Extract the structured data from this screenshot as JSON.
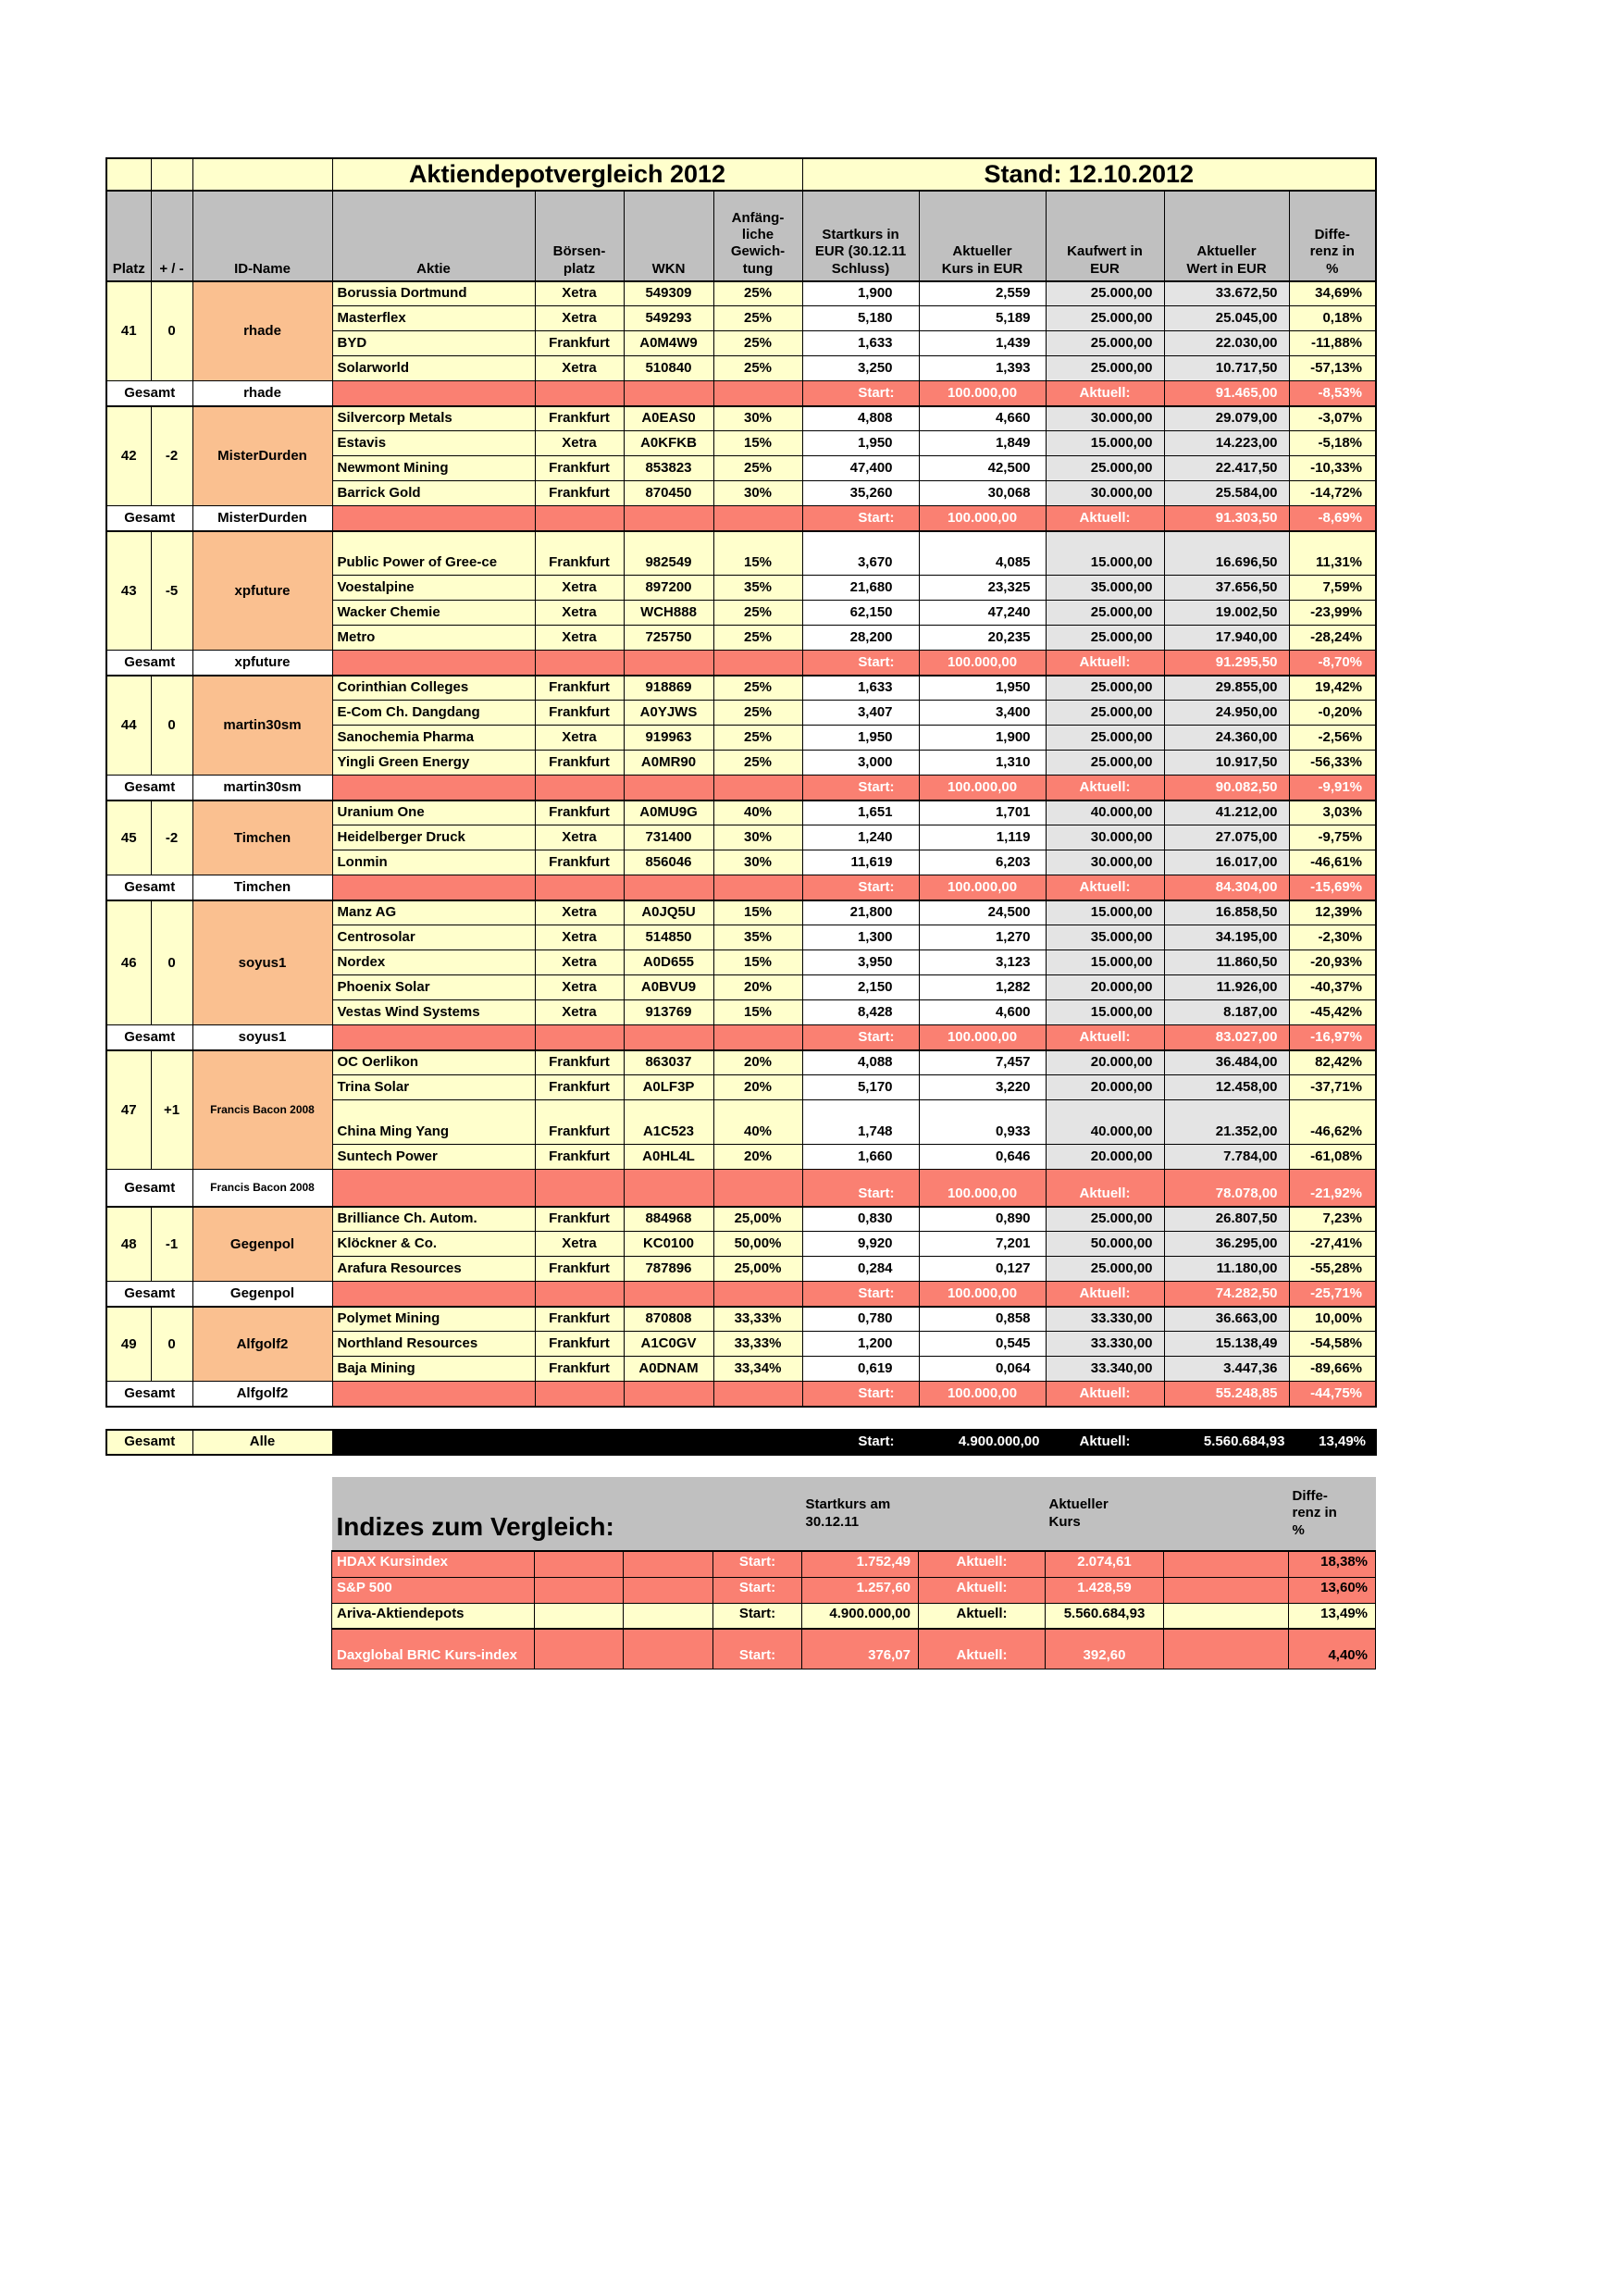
{
  "sheet": {
    "title": "Aktiendepotvergleich 2012",
    "stand": "Stand: 12.10.2012"
  },
  "columns": {
    "platz": "Platz",
    "change": "+ / -",
    "id_name": "ID-Name",
    "aktie": "Aktie",
    "boersenplatz": "Börsen-platz",
    "wkn": "WKN",
    "gewichtung": "Anfäng-liche Gewich-tung",
    "startkurs": "Startkurs in EUR (30.12.11 Schluss)",
    "akt_kurs": "Aktueller Kurs in EUR",
    "kaufwert": "Kaufwert in EUR",
    "akt_wert": "Aktueller Wert in EUR",
    "differenz": "Diffe-renz in %"
  },
  "labels": {
    "gesamt": "Gesamt",
    "start": "Start:",
    "aktuell": "Aktuell:"
  },
  "blocks": [
    {
      "platz": "41",
      "change": "0",
      "id": "rhade",
      "stocks": [
        {
          "name": "Borussia Dortmund",
          "exchange": "Xetra",
          "wkn": "549309",
          "weight": "25%",
          "start": "1,900",
          "kurs": "2,559",
          "kaufwert": "25.000,00",
          "wert": "33.672,50",
          "diff": "34,69%"
        },
        {
          "name": "Masterflex",
          "exchange": "Xetra",
          "wkn": "549293",
          "weight": "25%",
          "start": "5,180",
          "kurs": "5,189",
          "kaufwert": "25.000,00",
          "wert": "25.045,00",
          "diff": "0,18%"
        },
        {
          "name": "BYD",
          "exchange": "Frankfurt",
          "wkn": "A0M4W9",
          "weight": "25%",
          "start": "1,633",
          "kurs": "1,439",
          "kaufwert": "25.000,00",
          "wert": "22.030,00",
          "diff": "-11,88%"
        },
        {
          "name": "Solarworld",
          "exchange": "Xetra",
          "wkn": "510840",
          "weight": "25%",
          "start": "3,250",
          "kurs": "1,393",
          "kaufwert": "25.000,00",
          "wert": "10.717,50",
          "diff": "-57,13%"
        }
      ],
      "gesamt": {
        "start": "100.000,00",
        "wert": "91.465,00",
        "diff": "-8,53%"
      }
    },
    {
      "platz": "42",
      "change": "-2",
      "id": "MisterDurden",
      "stocks": [
        {
          "name": "Silvercorp Metals",
          "exchange": "Frankfurt",
          "wkn": "A0EAS0",
          "weight": "30%",
          "start": "4,808",
          "kurs": "4,660",
          "kaufwert": "30.000,00",
          "wert": "29.079,00",
          "diff": "-3,07%"
        },
        {
          "name": "Estavis",
          "exchange": "Xetra",
          "wkn": "A0KFKB",
          "weight": "15%",
          "start": "1,950",
          "kurs": "1,849",
          "kaufwert": "15.000,00",
          "wert": "14.223,00",
          "diff": "-5,18%"
        },
        {
          "name": "Newmont Mining",
          "exchange": "Frankfurt",
          "wkn": "853823",
          "weight": "25%",
          "start": "47,400",
          "kurs": "42,500",
          "kaufwert": "25.000,00",
          "wert": "22.417,50",
          "diff": "-10,33%"
        },
        {
          "name": "Barrick Gold",
          "exchange": "Frankfurt",
          "wkn": "870450",
          "weight": "30%",
          "start": "35,260",
          "kurs": "30,068",
          "kaufwert": "30.000,00",
          "wert": "25.584,00",
          "diff": "-14,72%"
        }
      ],
      "gesamt": {
        "start": "100.000,00",
        "wert": "91.303,50",
        "diff": "-8,69%"
      }
    },
    {
      "platz": "43",
      "change": "-5",
      "id": "xpfuture",
      "stocks": [
        {
          "name": "Public Power of Gree-ce",
          "exchange": "Frankfurt",
          "wkn": "982549",
          "weight": "15%",
          "start": "3,670",
          "kurs": "4,085",
          "kaufwert": "15.000,00",
          "wert": "16.696,50",
          "diff": "11,31%",
          "tall": true
        },
        {
          "name": "Voestalpine",
          "exchange": "Xetra",
          "wkn": "897200",
          "weight": "35%",
          "start": "21,680",
          "kurs": "23,325",
          "kaufwert": "35.000,00",
          "wert": "37.656,50",
          "diff": "7,59%"
        },
        {
          "name": "Wacker Chemie",
          "exchange": "Xetra",
          "wkn": "WCH888",
          "weight": "25%",
          "start": "62,150",
          "kurs": "47,240",
          "kaufwert": "25.000,00",
          "wert": "19.002,50",
          "diff": "-23,99%"
        },
        {
          "name": "Metro",
          "exchange": "Xetra",
          "wkn": "725750",
          "weight": "25%",
          "start": "28,200",
          "kurs": "20,235",
          "kaufwert": "25.000,00",
          "wert": "17.940,00",
          "diff": "-28,24%"
        }
      ],
      "gesamt": {
        "start": "100.000,00",
        "wert": "91.295,50",
        "diff": "-8,70%"
      }
    },
    {
      "platz": "44",
      "change": "0",
      "id": "martin30sm",
      "stocks": [
        {
          "name": "Corinthian Colleges",
          "exchange": "Frankfurt",
          "wkn": "918869",
          "weight": "25%",
          "start": "1,633",
          "kurs": "1,950",
          "kaufwert": "25.000,00",
          "wert": "29.855,00",
          "diff": "19,42%"
        },
        {
          "name": "E-Com Ch. Dangdang",
          "exchange": "Frankfurt",
          "wkn": "A0YJWS",
          "weight": "25%",
          "start": "3,407",
          "kurs": "3,400",
          "kaufwert": "25.000,00",
          "wert": "24.950,00",
          "diff": "-0,20%"
        },
        {
          "name": "Sanochemia Pharma",
          "exchange": "Xetra",
          "wkn": "919963",
          "weight": "25%",
          "start": "1,950",
          "kurs": "1,900",
          "kaufwert": "25.000,00",
          "wert": "24.360,00",
          "diff": "-2,56%"
        },
        {
          "name": "Yingli Green Energy",
          "exchange": "Frankfurt",
          "wkn": "A0MR90",
          "weight": "25%",
          "start": "3,000",
          "kurs": "1,310",
          "kaufwert": "25.000,00",
          "wert": "10.917,50",
          "diff": "-56,33%"
        }
      ],
      "gesamt": {
        "start": "100.000,00",
        "wert": "90.082,50",
        "diff": "-9,91%"
      }
    },
    {
      "platz": "45",
      "change": "-2",
      "id": "Timchen",
      "stocks": [
        {
          "name": "Uranium One",
          "exchange": "Frankfurt",
          "wkn": "A0MU9G",
          "weight": "40%",
          "start": "1,651",
          "kurs": "1,701",
          "kaufwert": "40.000,00",
          "wert": "41.212,00",
          "diff": "3,03%"
        },
        {
          "name": "Heidelberger Druck",
          "exchange": "Xetra",
          "wkn": "731400",
          "weight": "30%",
          "start": "1,240",
          "kurs": "1,119",
          "kaufwert": "30.000,00",
          "wert": "27.075,00",
          "diff": "-9,75%"
        },
        {
          "name": "Lonmin",
          "exchange": "Frankfurt",
          "wkn": "856046",
          "weight": "30%",
          "start": "11,619",
          "kurs": "6,203",
          "kaufwert": "30.000,00",
          "wert": "16.017,00",
          "diff": "-46,61%"
        }
      ],
      "gesamt": {
        "start": "100.000,00",
        "wert": "84.304,00",
        "diff": "-15,69%"
      }
    },
    {
      "platz": "46",
      "change": "0",
      "id": "soyus1",
      "stocks": [
        {
          "name": "Manz AG",
          "exchange": "Xetra",
          "wkn": "A0JQ5U",
          "weight": "15%",
          "start": "21,800",
          "kurs": "24,500",
          "kaufwert": "15.000,00",
          "wert": "16.858,50",
          "diff": "12,39%"
        },
        {
          "name": "Centrosolar",
          "exchange": "Xetra",
          "wkn": "514850",
          "weight": "35%",
          "start": "1,300",
          "kurs": "1,270",
          "kaufwert": "35.000,00",
          "wert": "34.195,00",
          "diff": "-2,30%"
        },
        {
          "name": "Nordex",
          "exchange": "Xetra",
          "wkn": "A0D655",
          "weight": "15%",
          "start": "3,950",
          "kurs": "3,123",
          "kaufwert": "15.000,00",
          "wert": "11.860,50",
          "diff": "-20,93%"
        },
        {
          "name": "Phoenix Solar",
          "exchange": "Xetra",
          "wkn": "A0BVU9",
          "weight": "20%",
          "start": "2,150",
          "kurs": "1,282",
          "kaufwert": "20.000,00",
          "wert": "11.926,00",
          "diff": "-40,37%"
        },
        {
          "name": "Vestas Wind Systems",
          "exchange": "Xetra",
          "wkn": "913769",
          "weight": "15%",
          "start": "8,428",
          "kurs": "4,600",
          "kaufwert": "15.000,00",
          "wert": "8.187,00",
          "diff": "-45,42%"
        }
      ],
      "gesamt": {
        "start": "100.000,00",
        "wert": "83.027,00",
        "diff": "-16,97%"
      }
    },
    {
      "platz": "47",
      "change": "+1",
      "id": "Francis Bacon 2008",
      "gesamt_tall": true,
      "stocks": [
        {
          "name": "OC Oerlikon",
          "exchange": "Frankfurt",
          "wkn": "863037",
          "weight": "20%",
          "start": "4,088",
          "kurs": "7,457",
          "kaufwert": "20.000,00",
          "wert": "36.484,00",
          "diff": "82,42%"
        },
        {
          "name": "Trina Solar",
          "exchange": "Frankfurt",
          "wkn": "A0LF3P",
          "weight": "20%",
          "start": "5,170",
          "kurs": "3,220",
          "kaufwert": "20.000,00",
          "wert": "12.458,00",
          "diff": "-37,71%"
        },
        {
          "name": "China Ming Yang",
          "exchange": "Frankfurt",
          "wkn": "A1C523",
          "weight": "40%",
          "start": "1,748",
          "kurs": "0,933",
          "kaufwert": "40.000,00",
          "wert": "21.352,00",
          "diff": "-46,62%",
          "tall": true
        },
        {
          "name": "Suntech Power",
          "exchange": "Frankfurt",
          "wkn": "A0HL4L",
          "weight": "20%",
          "start": "1,660",
          "kurs": "0,646",
          "kaufwert": "20.000,00",
          "wert": "7.784,00",
          "diff": "-61,08%"
        }
      ],
      "gesamt": {
        "start": "100.000,00",
        "wert": "78.078,00",
        "diff": "-21,92%"
      }
    },
    {
      "platz": "48",
      "change": "-1",
      "id": "Gegenpol",
      "stocks": [
        {
          "name": "Brilliance Ch. Autom.",
          "exchange": "Frankfurt",
          "wkn": "884968",
          "weight": "25,00%",
          "start": "0,830",
          "kurs": "0,890",
          "kaufwert": "25.000,00",
          "wert": "26.807,50",
          "diff": "7,23%"
        },
        {
          "name": "Klöckner & Co.",
          "exchange": "Xetra",
          "wkn": "KC0100",
          "weight": "50,00%",
          "start": "9,920",
          "kurs": "7,201",
          "kaufwert": "50.000,00",
          "wert": "36.295,00",
          "diff": "-27,41%"
        },
        {
          "name": "Arafura Resources",
          "exchange": "Frankfurt",
          "wkn": "787896",
          "weight": "25,00%",
          "start": "0,284",
          "kurs": "0,127",
          "kaufwert": "25.000,00",
          "wert": "11.180,00",
          "diff": "-55,28%"
        }
      ],
      "gesamt": {
        "start": "100.000,00",
        "wert": "74.282,50",
        "diff": "-25,71%"
      }
    },
    {
      "platz": "49",
      "change": "0",
      "id": "Alfgolf2",
      "stocks": [
        {
          "name": "Polymet Mining",
          "exchange": "Frankfurt",
          "wkn": "870808",
          "weight": "33,33%",
          "start": "0,780",
          "kurs": "0,858",
          "kaufwert": "33.330,00",
          "wert": "36.663,00",
          "diff": "10,00%"
        },
        {
          "name": "Northland Resources",
          "exchange": "Frankfurt",
          "wkn": "A1C0GV",
          "weight": "33,33%",
          "start": "1,200",
          "kurs": "0,545",
          "kaufwert": "33.330,00",
          "wert": "15.138,49",
          "diff": "-54,58%"
        },
        {
          "name": "Baja Mining",
          "exchange": "Frankfurt",
          "wkn": "A0DNAM",
          "weight": "33,34%",
          "start": "0,619",
          "kurs": "0,064",
          "kaufwert": "33.340,00",
          "wert": "3.447,36",
          "diff": "-89,66%"
        }
      ],
      "gesamt": {
        "start": "100.000,00",
        "wert": "55.248,85",
        "diff": "-44,75%"
      }
    }
  ],
  "grand": {
    "label": "Gesamt",
    "id": "Alle",
    "start": "4.900.000,00",
    "wert": "5.560.684,93",
    "diff": "13,49%"
  },
  "indices": {
    "title": "Indizes zum Vergleich:",
    "col_start": "Startkurs am 30.12.11",
    "col_aktuell": "Aktueller Kurs",
    "col_diff": "Diffe-renz in %",
    "rows": [
      {
        "name": "HDAX Kursindex",
        "style": "red",
        "start": "1.752,49",
        "aktuell": "2.074,61",
        "diff": "18,38%"
      },
      {
        "name": "S&P 500",
        "style": "red",
        "start": "1.257,60",
        "aktuell": "1.428,59",
        "diff": "13,60%"
      },
      {
        "name": "Ariva-Aktiendepots",
        "style": "yellow",
        "start": "4.900.000,00",
        "aktuell": "5.560.684,93",
        "diff": "13,49%"
      },
      {
        "name": "Daxglobal BRIC Kurs-index",
        "style": "red",
        "tall": true,
        "start": "376,07",
        "aktuell": "392,60",
        "diff": "4,40%"
      }
    ]
  },
  "colors": {
    "yellow": "#FFFFCC",
    "lavender": "#CCCCFF",
    "orange": "#FAC090",
    "salmon": "#FA8072",
    "gray_header": "#C0C0C0",
    "gray_cell": "#E4E4E4",
    "black": "#000000"
  }
}
